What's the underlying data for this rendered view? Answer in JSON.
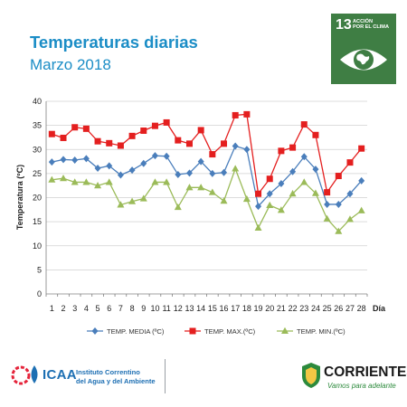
{
  "header": {
    "title": "Temperaturas diarias",
    "subtitle": "Marzo 2018"
  },
  "sdg": {
    "number": "13",
    "label_line1": "ACCIÓN",
    "label_line2": "POR EL CLIMA",
    "color": "#3f7e44",
    "icon": "globe-eye-icon"
  },
  "footer": {
    "icaa_logo_text": "ICAA",
    "icaa_name_line1": "Instituto Correntino",
    "icaa_name_line2": "del Agua y del Ambiente",
    "corrientes_name": "CORRIENTES",
    "corrientes_slogan": "Vamos para adelante"
  },
  "chart_data": {
    "type": "line",
    "title": "",
    "xlabel": "Día",
    "ylabel": "Temperatura (ºC)",
    "ylim": [
      0,
      40
    ],
    "yticks": [
      0,
      5,
      10,
      15,
      20,
      25,
      30,
      35,
      40
    ],
    "grid": true,
    "legend_position": "bottom",
    "x": [
      1,
      2,
      3,
      4,
      5,
      6,
      7,
      8,
      9,
      10,
      11,
      12,
      13,
      14,
      15,
      16,
      17,
      18,
      19,
      20,
      21,
      22,
      23,
      24,
      25,
      26,
      27,
      28
    ],
    "series": [
      {
        "name": "TEMP. MEDIA (ºC)",
        "color": "#4a7ebb",
        "marker": "diamond",
        "values": [
          27.4,
          27.9,
          27.8,
          28.1,
          26.1,
          26.6,
          24.7,
          25.7,
          27.1,
          28.7,
          28.6,
          24.8,
          25.1,
          27.5,
          25.0,
          25.2,
          30.7,
          30.0,
          18.2,
          20.8,
          22.9,
          25.4,
          28.5,
          25.9,
          18.6,
          18.6,
          20.8,
          23.5
        ]
      },
      {
        "name": "TEMP. MAX.(ºC)",
        "color": "#e41f1f",
        "marker": "square",
        "values": [
          33.2,
          32.4,
          34.6,
          34.3,
          31.7,
          31.3,
          30.8,
          32.8,
          33.9,
          34.9,
          35.6,
          31.9,
          31.2,
          34.0,
          29.0,
          31.2,
          37.1,
          37.3,
          20.8,
          23.9,
          29.7,
          30.4,
          35.2,
          33.0,
          21.1,
          24.5,
          27.3,
          30.2
        ]
      },
      {
        "name": "TEMP. MIN.(ºC)",
        "color": "#9bbb59",
        "marker": "triangle",
        "values": [
          23.7,
          24.0,
          23.2,
          23.2,
          22.5,
          23.2,
          18.5,
          19.2,
          19.8,
          23.2,
          23.2,
          18.0,
          22.1,
          22.1,
          21.1,
          19.3,
          26.0,
          19.7,
          13.7,
          18.4,
          17.4,
          20.8,
          23.2,
          20.9,
          15.6,
          13.0,
          15.5,
          17.3
        ]
      }
    ]
  }
}
